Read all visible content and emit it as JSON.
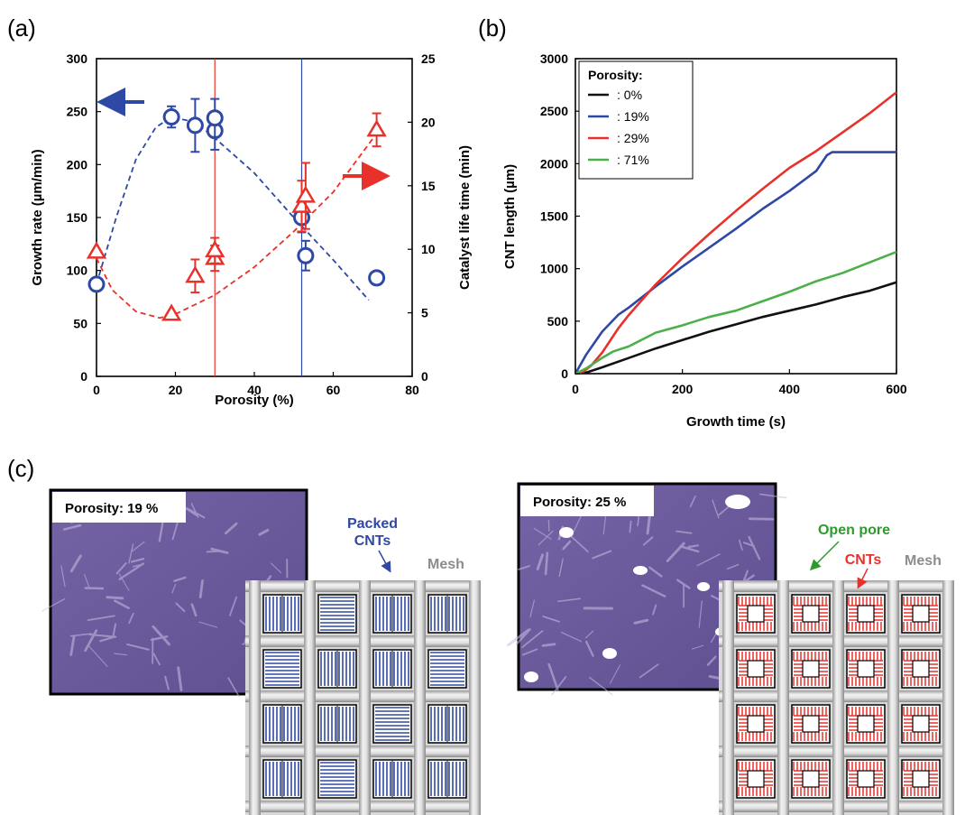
{
  "panel_labels": {
    "a": "(a)",
    "b": "(b)",
    "c": "(c)"
  },
  "colors": {
    "blue": "#2e48a6",
    "red": "#e8312a",
    "green": "#4caf4a",
    "black": "#111111",
    "grey": "#8c8c8c",
    "purple": "#6a5a9c"
  },
  "chart_data": [
    {
      "type": "scatter",
      "panel": "(a)",
      "xlabel": "Porosity (%)",
      "ylabel": "Growth rate (µm/min)",
      "y2label": "Catalyst life time (min)",
      "xlim": [
        0,
        80
      ],
      "ylim": [
        0,
        300
      ],
      "y2lim": [
        0,
        25
      ],
      "x_ticks": [
        "0",
        "20",
        "40",
        "60",
        "80"
      ],
      "y_ticks": [
        "0",
        "50",
        "100",
        "150",
        "200",
        "250",
        "300"
      ],
      "y2_ticks": [
        "0",
        "5",
        "10",
        "15",
        "20",
        "25"
      ],
      "vertical_lines": [
        {
          "x": 30,
          "color": "red"
        },
        {
          "x": 52,
          "color": "blue"
        }
      ],
      "series": [
        {
          "axis": "left",
          "color": "#2e48a6",
          "marker": "circle",
          "points": [
            {
              "x": 0,
              "y": 87,
              "err": 0
            },
            {
              "x": 19,
              "y": 245,
              "err": 10
            },
            {
              "x": 25,
              "y": 237,
              "err": 25
            },
            {
              "x": 30,
              "y": 232,
              "err": 18
            },
            {
              "x": 30,
              "y": 244,
              "err": 18
            },
            {
              "x": 52,
              "y": 150,
              "err": 14
            },
            {
              "x": 53,
              "y": 114,
              "err": 14
            },
            {
              "x": 71,
              "y": 93,
              "err": 0
            }
          ],
          "trend": [
            [
              0,
              87
            ],
            [
              5,
              150
            ],
            [
              10,
              205
            ],
            [
              15,
              235
            ],
            [
              19,
              245
            ],
            [
              25,
              240
            ],
            [
              30,
              225
            ],
            [
              40,
              192
            ],
            [
              50,
              150
            ],
            [
              60,
              110
            ],
            [
              69,
              72
            ]
          ]
        },
        {
          "axis": "right",
          "color": "#e8312a",
          "marker": "triangle",
          "points": [
            {
              "x": 0,
              "y": 9.8,
              "err": 0
            },
            {
              "x": 19,
              "y": 4.9,
              "err": 0
            },
            {
              "x": 25,
              "y": 7.9,
              "err": 1.3
            },
            {
              "x": 30,
              "y": 9.3,
              "err": 1.0
            },
            {
              "x": 30,
              "y": 9.9,
              "err": 1.0
            },
            {
              "x": 52,
              "y": 13.4,
              "err": 2.0
            },
            {
              "x": 53,
              "y": 14.2,
              "err": 2.6
            },
            {
              "x": 71,
              "y": 19.4,
              "err": 1.3
            }
          ],
          "trend": [
            [
              0,
              9.3
            ],
            [
              4,
              6.8
            ],
            [
              10,
              5.1
            ],
            [
              16,
              4.6
            ],
            [
              20,
              4.9
            ],
            [
              30,
              6.4
            ],
            [
              40,
              8.6
            ],
            [
              50,
              11.4
            ],
            [
              60,
              14.5
            ],
            [
              70,
              18.7
            ]
          ]
        }
      ],
      "arrows": [
        {
          "direction": "left",
          "color": "blue"
        },
        {
          "direction": "right",
          "color": "red"
        }
      ]
    },
    {
      "type": "line",
      "panel": "(b)",
      "xlabel": "Growth time (s)",
      "ylabel": "CNT length (µm)",
      "xlim": [
        0,
        600
      ],
      "ylim": [
        0,
        3000
      ],
      "x_ticks": [
        "0",
        "200",
        "400",
        "600"
      ],
      "y_ticks": [
        "0",
        "500",
        "1000",
        "1500",
        "2000",
        "2500",
        "3000"
      ],
      "legend_title": "Porosity:",
      "legend_position": "top-left",
      "series": [
        {
          "name": ": 0%",
          "color": "#111111",
          "x": [
            0,
            20,
            50,
            100,
            150,
            200,
            250,
            300,
            350,
            400,
            450,
            500,
            550,
            600
          ],
          "y": [
            0,
            10,
            60,
            150,
            240,
            320,
            400,
            470,
            540,
            600,
            660,
            730,
            790,
            870
          ]
        },
        {
          "name": ": 19%",
          "color": "#2e48a6",
          "x": [
            0,
            20,
            50,
            80,
            100,
            150,
            200,
            250,
            300,
            350,
            400,
            450,
            470,
            480,
            500,
            550,
            600
          ],
          "y": [
            0,
            180,
            400,
            560,
            630,
            830,
            1020,
            1200,
            1380,
            1570,
            1740,
            1930,
            2080,
            2110,
            2110,
            2110,
            2110
          ]
        },
        {
          "name": ": 29%",
          "color": "#e8312a",
          "x": [
            0,
            15,
            30,
            50,
            80,
            100,
            150,
            200,
            250,
            300,
            350,
            400,
            450,
            500,
            550,
            600
          ],
          "y": [
            0,
            20,
            80,
            200,
            430,
            560,
            850,
            1100,
            1330,
            1550,
            1760,
            1960,
            2120,
            2300,
            2480,
            2680
          ]
        },
        {
          "name": ": 71%",
          "color": "#4caf4a",
          "x": [
            0,
            20,
            50,
            70,
            100,
            150,
            200,
            250,
            300,
            350,
            400,
            450,
            500,
            550,
            600
          ],
          "y": [
            0,
            50,
            150,
            210,
            260,
            390,
            460,
            540,
            600,
            690,
            780,
            880,
            960,
            1060,
            1160
          ]
        }
      ]
    }
  ],
  "panel_c": {
    "left": {
      "porosity_label": "Porosity: 19 %",
      "callout_1": "Packed",
      "callout_2": "CNTs",
      "mesh_label": "Mesh"
    },
    "right": {
      "porosity_label": "Porosity: 25 %",
      "callout_open": "Open pore",
      "callout_cnts": "CNTs",
      "mesh_label": "Mesh"
    }
  }
}
